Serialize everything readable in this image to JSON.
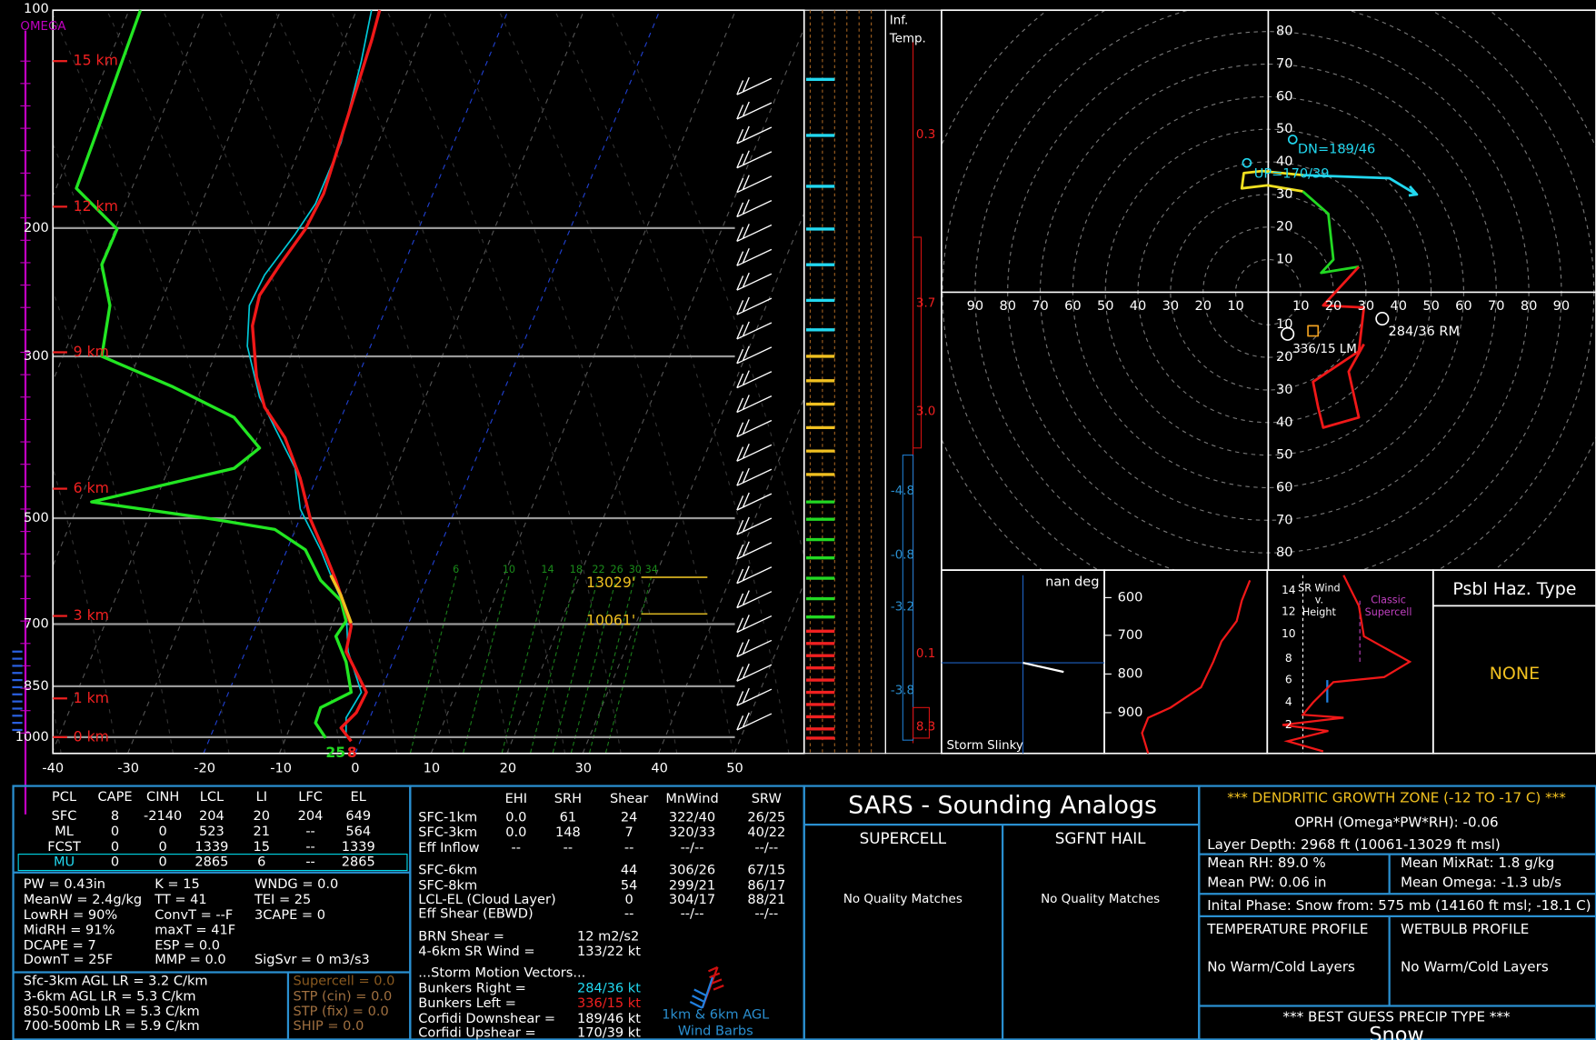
{
  "skewt": {
    "pressure_labels": [
      "100",
      "200",
      "300",
      "500",
      "700",
      "850",
      "1000"
    ],
    "height_labels": [
      "15 km",
      "12 km",
      "9 km",
      "6 km",
      "3 km",
      "1 km",
      "0 km"
    ],
    "temp_labels": [
      "-40",
      "-30",
      "-20",
      "-10",
      "0",
      "10",
      "20",
      "30",
      "40",
      "50"
    ],
    "omega_label": "OMEGA",
    "mixing_ratio_labels": [
      "6",
      "10",
      "14",
      "18",
      "22",
      "26",
      "30",
      "34"
    ],
    "dgz_levels": [
      "13029'",
      "10061'"
    ],
    "sfc_dewpoint": "25",
    "sfc_temp": "8"
  },
  "inferred_temp": {
    "title_lines": [
      "Inf.",
      "Temp."
    ],
    "values": [
      "0.3",
      "3.7",
      "3.0",
      "-4.8",
      "-0.8",
      "-3.2",
      "0.1",
      "-3.8",
      "8.3"
    ]
  },
  "hodograph": {
    "ring_labels": [
      "10",
      "20",
      "30",
      "40",
      "50",
      "60",
      "70",
      "80",
      "90"
    ],
    "annotations": [
      "DN=189/46",
      "UP=170/39",
      "284/36 RM",
      "336/15 LM"
    ]
  },
  "slinky": {
    "direction": "nan deg",
    "title": "Storm Slinky"
  },
  "theta_panel": {
    "labels": [
      "600",
      "700",
      "800",
      "900"
    ]
  },
  "srwind": {
    "title_lines": [
      "SR Wind",
      "v.",
      "Height"
    ],
    "ticks": [
      "14",
      "12",
      "10",
      "8",
      "6",
      "4",
      "2"
    ],
    "annotation_lines": [
      "Classic",
      "Supercell"
    ]
  },
  "hazard": {
    "title": "Psbl Haz. Type",
    "value": "NONE"
  },
  "parcels": {
    "columns": [
      "PCL",
      "CAPE",
      "CINH",
      "LCL",
      "LI",
      "LFC",
      "EL"
    ],
    "rows": [
      [
        "SFC",
        "8",
        "-2140",
        "204",
        "20",
        "204",
        "649"
      ],
      [
        "ML",
        "0",
        "0",
        "523",
        "21",
        "--",
        "564"
      ],
      [
        "FCST",
        "0",
        "0",
        "1339",
        "15",
        "--",
        "1339"
      ],
      [
        "MU",
        "0",
        "0",
        "2865",
        "6",
        "--",
        "2865"
      ]
    ]
  },
  "indices": [
    [
      "PW = 0.43in",
      "K = 15",
      "WNDG = 0.0"
    ],
    [
      "MeanW = 2.4g/kg",
      "TT = 41",
      "TEI = 25"
    ],
    [
      "LowRH = 90%",
      "ConvT = --F",
      "3CAPE = 0"
    ],
    [
      "MidRH = 91%",
      "maxT = 41F"
    ],
    [
      "DCAPE = 7",
      "ESP = 0.0"
    ],
    [
      "DownT = 25F",
      "MMP = 0.0",
      "SigSvr = 0 m3/s3"
    ]
  ],
  "lapse_rates": [
    "Sfc-3km AGL LR = 3.2 C/km",
    "3-6km AGL LR = 5.3 C/km",
    "850-500mb LR = 5.3 C/km",
    "700-500mb LR = 5.9 C/km"
  ],
  "composites": [
    "Supercell = 0.0",
    "STP (cin) = 0.0",
    "STP (fix) = 0.0",
    "SHIP = 0.0"
  ],
  "kinematics": {
    "columns": [
      "EHI",
      "SRH",
      "Shear",
      "MnWind",
      "SRW"
    ],
    "rows": [
      [
        "SFC-1km",
        "0.0",
        "61",
        "24",
        "322/40",
        "26/25"
      ],
      [
        "SFC-3km",
        "0.0",
        "148",
        "7",
        "320/33",
        "40/22"
      ],
      [
        "Eff Inflow",
        "--",
        "--",
        "--",
        "--/--",
        "--/--"
      ]
    ],
    "deep_rows": [
      [
        "SFC-6km",
        "44",
        "306/26",
        "67/15"
      ],
      [
        "SFC-8km",
        "54",
        "299/21",
        "86/17"
      ],
      [
        "LCL-EL (Cloud Layer)",
        "0",
        "304/17",
        "88/21"
      ],
      [
        "Eff Shear (EBWD)",
        "--",
        "--/--",
        "--/--"
      ]
    ]
  },
  "brn": [
    [
      "BRN Shear =",
      "12 m2/s2"
    ],
    [
      "4-6km SR Wind =",
      "133/22 kt"
    ]
  ],
  "storm_motion": {
    "title": "...Storm Motion Vectors...",
    "rows": [
      [
        "Bunkers Right =",
        "284/36 kt"
      ],
      [
        "Bunkers Left =",
        "336/15 kt"
      ],
      [
        "Corfidi Downshear =",
        "189/46 kt"
      ],
      [
        "Corfidi Upshear =",
        "170/39 kt"
      ]
    ]
  },
  "barbs_caption": [
    "1km & 6km AGL",
    "Wind Barbs"
  ],
  "sars": {
    "title": "SARS - Sounding Analogs",
    "supercell": "SUPERCELL",
    "hail": "SGFNT HAIL",
    "supercell_result": "No Quality Matches",
    "hail_result": "No Quality Matches"
  },
  "dgz": {
    "title": "*** DENDRITIC GROWTH ZONE (-12 TO -17 C) ***",
    "oprh": "OPRH (Omega*PW*RH): -0.06",
    "depth": "Layer Depth: 2968 ft (10061-13029 ft msl)",
    "mean_rh": "Mean RH: 89.0 %",
    "mean_mixrat": "Mean MixRat: 1.8 g/kg",
    "mean_pw": "Mean PW: 0.06 in",
    "mean_omega": "Mean Omega: -1.3 ub/s",
    "phase": "Inital Phase: Snow from: 575 mb (14160 ft msl; -18.1 C)",
    "temp_profile": "TEMPERATURE PROFILE",
    "wetbulb_profile": "WETBULB PROFILE",
    "temp_result": "No Warm/Cold Layers",
    "wetbulb_result": "No Warm/Cold Layers",
    "precip_title": "*** BEST GUESS PRECIP TYPE ***",
    "precip": "Snow"
  }
}
